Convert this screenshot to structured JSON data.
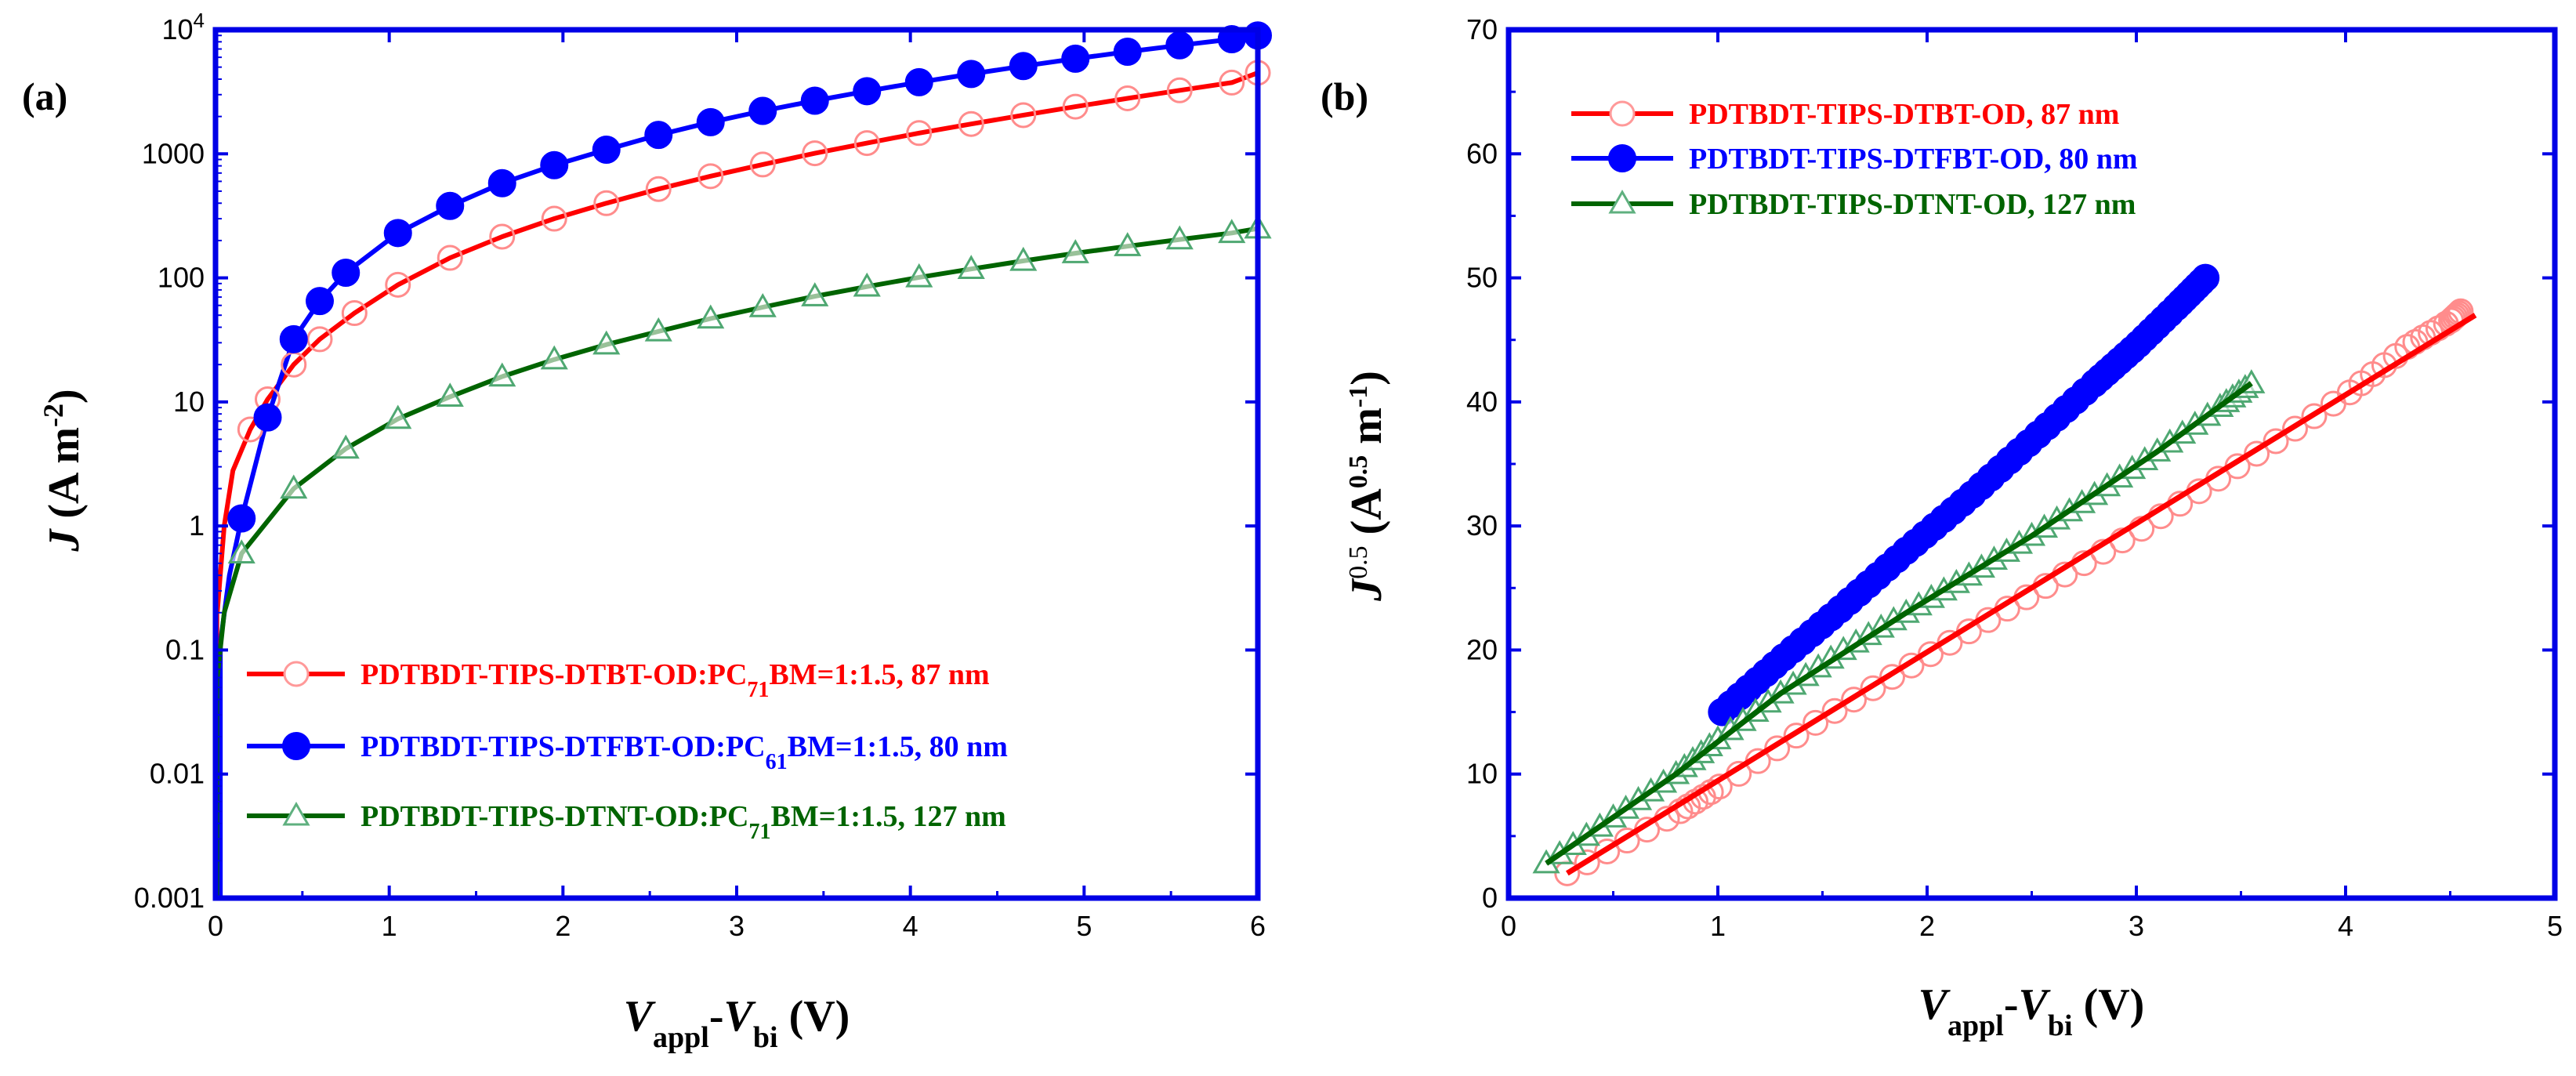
{
  "chart_data": [
    {
      "type": "line",
      "panel_label": "(a)",
      "xlabel_parts": {
        "v1": "V",
        "sub1": "appl",
        "dash": "-",
        "v2": "V",
        "sub2": "bi",
        "unit": " (V)"
      },
      "ylabel_parts": {
        "j": "J",
        "unit_open": " (A m",
        "sup": "-2",
        "close": ")"
      },
      "xlim": [
        0,
        6
      ],
      "yscale": "log",
      "ylim": [
        0.001,
        10000
      ],
      "xticks": [
        "0",
        "1",
        "2",
        "3",
        "4",
        "5",
        "6"
      ],
      "yticks": [
        {
          "value": 0.001,
          "label": "0.001"
        },
        {
          "value": 0.01,
          "label": "0.01"
        },
        {
          "value": 0.1,
          "label": "0.1"
        },
        {
          "value": 1,
          "label": "1"
        },
        {
          "value": 10,
          "label": "10"
        },
        {
          "value": 100,
          "label": "100"
        },
        {
          "value": 1000,
          "label": "1000"
        },
        {
          "value": 10000,
          "label": "10",
          "sup": "4"
        }
      ],
      "series": [
        {
          "color": "#ff0000",
          "marker": "circle-open",
          "legend": {
            "main": "PDTBDT-TIPS-DTBT-OD:PC",
            "sub": "71",
            "rest": "BM=1:1.5, 87 nm"
          },
          "x": [
            0.01,
            0.05,
            0.1,
            0.2,
            0.3,
            0.45,
            0.6,
            0.8,
            1.05,
            1.35,
            1.65,
            1.95,
            2.25,
            2.55,
            2.85,
            3.15,
            3.45,
            3.75,
            4.05,
            4.35,
            4.65,
            4.95,
            5.25,
            5.55,
            5.85,
            6.0
          ],
          "y": [
            0.2,
            1.0,
            2.8,
            6.0,
            10.5,
            20,
            32,
            52,
            88,
            145,
            215,
            300,
            400,
            520,
            660,
            820,
            1010,
            1220,
            1470,
            1740,
            2050,
            2400,
            2800,
            3250,
            3750,
            4500
          ]
        },
        {
          "color": "#0000ff",
          "marker": "circle-filled",
          "legend": {
            "main": "PDTBDT-TIPS-DTFBT-OD:PC",
            "sub": "61",
            "rest": "BM=1:1.5, 80 nm"
          },
          "x": [
            0.03,
            0.08,
            0.15,
            0.3,
            0.45,
            0.6,
            0.75,
            1.05,
            1.35,
            1.65,
            1.95,
            2.25,
            2.55,
            2.85,
            3.15,
            3.45,
            3.75,
            4.05,
            4.35,
            4.65,
            4.95,
            5.25,
            5.55,
            5.85,
            6.0
          ],
          "y": [
            0.12,
            0.4,
            1.15,
            7.5,
            32,
            65,
            110,
            230,
            380,
            580,
            810,
            1080,
            1420,
            1800,
            2220,
            2680,
            3200,
            3780,
            4400,
            5100,
            5850,
            6650,
            7500,
            8400,
            9000
          ]
        },
        {
          "color": "#006400",
          "marker": "triangle-open",
          "legend": {
            "main": "PDTBDT-TIPS-DTNT-OD:PC",
            "sub": "71",
            "rest": "BM=1:1.5, 127 nm"
          },
          "x": [
            0.01,
            0.05,
            0.15,
            0.45,
            0.75,
            1.05,
            1.35,
            1.65,
            1.95,
            2.25,
            2.55,
            2.85,
            3.15,
            3.45,
            3.75,
            4.05,
            4.35,
            4.65,
            4.95,
            5.25,
            5.55,
            5.85,
            6.0
          ],
          "y": [
            0.06,
            0.2,
            0.6,
            2.0,
            4.2,
            7.3,
            11,
            16,
            22,
            29,
            37,
            47,
            58,
            71,
            85,
            101,
            118,
            137,
            158,
            180,
            204,
            230,
            250
          ]
        }
      ]
    },
    {
      "type": "line",
      "panel_label": "(b)",
      "xlabel_parts": {
        "v1": "V",
        "sub1": "appl",
        "dash": "-",
        "v2": "V",
        "sub2": "bi",
        "unit": " (V)"
      },
      "ylabel_parts": {
        "j": "J",
        "sup1": "0.5",
        "unit_open": " (A",
        "sup2": "0.5",
        "mid": " m",
        "sup3": "-1",
        "close": ")"
      },
      "xlim": [
        0,
        5
      ],
      "ylim": [
        0,
        70
      ],
      "xticks": [
        "0",
        "1",
        "2",
        "3",
        "4",
        "5"
      ],
      "yticks": [
        "0",
        "10",
        "20",
        "30",
        "40",
        "50",
        "60",
        "70"
      ],
      "series": [
        {
          "color": "#ff0000",
          "marker": "circle-open",
          "legend": "PDTBDT-TIPS-DTBT-OD, 87 nm",
          "x": [
            0.28,
            0.8,
            1.0,
            1.5,
            2.0,
            2.5,
            3.0,
            3.5,
            4.0,
            4.3,
            4.5,
            4.55
          ],
          "y": [
            2.0,
            6.8,
            8.9,
            14.5,
            19.5,
            24.5,
            29.5,
            35.0,
            40.5,
            44.5,
            46.5,
            47.3
          ],
          "fit_x": [
            0.28,
            4.62
          ],
          "fit_y": [
            2.0,
            47.0
          ]
        },
        {
          "color": "#0000ff",
          "marker": "circle-filled",
          "legend": "PDTBDT-TIPS-DTFBT-OD, 80 nm",
          "x": [
            1.02,
            1.3,
            1.6,
            1.9,
            2.2,
            2.5,
            2.8,
            3.0,
            3.2,
            3.33
          ],
          "y": [
            15.0,
            19.2,
            23.5,
            28.0,
            32.3,
            36.9,
            41.5,
            44.5,
            47.8,
            50.0
          ],
          "fit_x": [
            1.02,
            3.33
          ],
          "fit_y": [
            15.0,
            50.0
          ]
        },
        {
          "color": "#006400",
          "marker": "triangle-open",
          "legend": "PDTBDT-TIPS-DTNT-OD, 127 nm",
          "x": [
            0.18,
            0.5,
            0.8,
            1.0,
            1.3,
            1.6,
            1.9,
            2.2,
            2.5,
            2.8,
            3.1,
            3.4,
            3.55
          ],
          "y": [
            2.8,
            6.5,
            10.0,
            12.8,
            16.5,
            20.0,
            23.0,
            26.0,
            29.2,
            32.5,
            36.0,
            39.6,
            41.5
          ],
          "fit_x": [
            0.18,
            0.8,
            1.3,
            1.9,
            2.5,
            3.1,
            3.55
          ],
          "fit_y": [
            2.8,
            10.0,
            16.5,
            23.0,
            29.2,
            36.0,
            41.5
          ]
        }
      ]
    }
  ]
}
